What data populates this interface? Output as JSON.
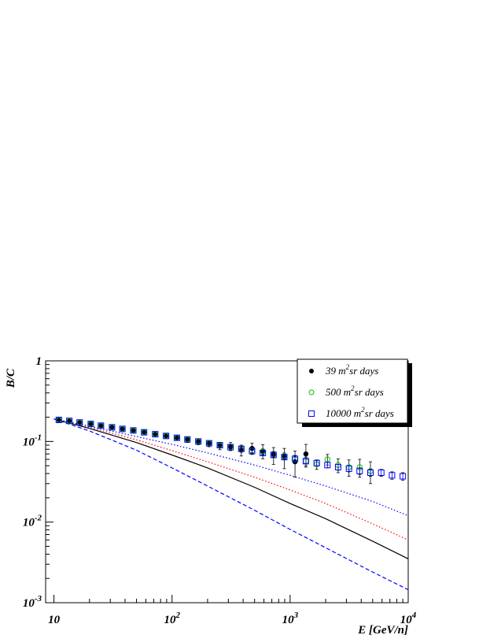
{
  "chart_data": {
    "type": "scatter",
    "xlabel": "E [GeV/n]",
    "ylabel": "B/C",
    "xscale": "log",
    "yscale": "log",
    "xlim": [
      8.5,
      10000
    ],
    "ylim": [
      0.001,
      1
    ],
    "xticks": [
      {
        "value": 10,
        "base": "10",
        "exp": ""
      },
      {
        "value": 100,
        "base": "10",
        "exp": "2"
      },
      {
        "value": 1000,
        "base": "10",
        "exp": "3"
      },
      {
        "value": 10000,
        "base": "10",
        "exp": "4"
      }
    ],
    "yticks": [
      {
        "value": 1,
        "base": "1",
        "exp": ""
      },
      {
        "value": 0.1,
        "base": "10",
        "exp": "-1"
      },
      {
        "value": 0.01,
        "base": "10",
        "exp": "-2"
      },
      {
        "value": 0.001,
        "base": "10",
        "exp": "-3"
      }
    ],
    "legend_position": "top-right",
    "series": [
      {
        "name": "39 m2sr days",
        "legend": {
          "pre": "39 m",
          "sup": "2",
          "post": "sr days"
        },
        "marker": "dot",
        "color": "#000000",
        "points": [
          {
            "x": 11,
            "y": 0.185,
            "err": 0.008
          },
          {
            "x": 13.5,
            "y": 0.18,
            "err": 0.008
          },
          {
            "x": 16.5,
            "y": 0.172,
            "err": 0.008
          },
          {
            "x": 20.5,
            "y": 0.165,
            "err": 0.008
          },
          {
            "x": 25,
            "y": 0.156,
            "err": 0.008
          },
          {
            "x": 31,
            "y": 0.149,
            "err": 0.008
          },
          {
            "x": 38,
            "y": 0.142,
            "err": 0.008
          },
          {
            "x": 47,
            "y": 0.136,
            "err": 0.008
          },
          {
            "x": 58,
            "y": 0.13,
            "err": 0.008
          },
          {
            "x": 72,
            "y": 0.123,
            "err": 0.008
          },
          {
            "x": 89,
            "y": 0.117,
            "err": 0.008
          },
          {
            "x": 110,
            "y": 0.111,
            "err": 0.008
          },
          {
            "x": 135,
            "y": 0.105,
            "err": 0.008
          },
          {
            "x": 167,
            "y": 0.099,
            "err": 0.008
          },
          {
            "x": 206,
            "y": 0.094,
            "err": 0.008
          },
          {
            "x": 254,
            "y": 0.088,
            "err": 0.009
          },
          {
            "x": 313,
            "y": 0.087,
            "err": 0.01
          },
          {
            "x": 386,
            "y": 0.078,
            "err": 0.012
          },
          {
            "x": 476,
            "y": 0.082,
            "err": 0.013
          },
          {
            "x": 587,
            "y": 0.076,
            "err": 0.015
          },
          {
            "x": 724,
            "y": 0.068,
            "err": 0.016
          },
          {
            "x": 893,
            "y": 0.064,
            "err": 0.018
          },
          {
            "x": 1100,
            "y": 0.056,
            "err": 0.02
          },
          {
            "x": 1360,
            "y": 0.07,
            "err": 0.022
          }
        ]
      },
      {
        "name": "500 m2sr days",
        "legend": {
          "pre": "500 m",
          "sup": "2",
          "post": "sr days"
        },
        "marker": "circle",
        "color": "#00c800",
        "points": [
          {
            "x": 11,
            "y": 0.185,
            "err": 0.006
          },
          {
            "x": 13.5,
            "y": 0.18,
            "err": 0.006
          },
          {
            "x": 16.5,
            "y": 0.172,
            "err": 0.006
          },
          {
            "x": 20.5,
            "y": 0.165,
            "err": 0.006
          },
          {
            "x": 25,
            "y": 0.157,
            "err": 0.006
          },
          {
            "x": 31,
            "y": 0.15,
            "err": 0.006
          },
          {
            "x": 38,
            "y": 0.143,
            "err": 0.006
          },
          {
            "x": 47,
            "y": 0.137,
            "err": 0.006
          },
          {
            "x": 58,
            "y": 0.13,
            "err": 0.006
          },
          {
            "x": 72,
            "y": 0.123,
            "err": 0.006
          },
          {
            "x": 89,
            "y": 0.117,
            "err": 0.006
          },
          {
            "x": 110,
            "y": 0.111,
            "err": 0.006
          },
          {
            "x": 135,
            "y": 0.106,
            "err": 0.006
          },
          {
            "x": 167,
            "y": 0.1,
            "err": 0.006
          },
          {
            "x": 206,
            "y": 0.095,
            "err": 0.006
          },
          {
            "x": 254,
            "y": 0.09,
            "err": 0.006
          },
          {
            "x": 313,
            "y": 0.086,
            "err": 0.006
          },
          {
            "x": 386,
            "y": 0.081,
            "err": 0.006
          },
          {
            "x": 476,
            "y": 0.077,
            "err": 0.006
          },
          {
            "x": 587,
            "y": 0.075,
            "err": 0.006
          },
          {
            "x": 724,
            "y": 0.069,
            "err": 0.006
          },
          {
            "x": 893,
            "y": 0.066,
            "err": 0.006
          },
          {
            "x": 1100,
            "y": 0.06,
            "err": 0.007
          },
          {
            "x": 1360,
            "y": 0.057,
            "err": 0.007
          },
          {
            "x": 1680,
            "y": 0.052,
            "err": 0.007
          },
          {
            "x": 2070,
            "y": 0.06,
            "err": 0.009
          },
          {
            "x": 2550,
            "y": 0.051,
            "err": 0.01
          },
          {
            "x": 3150,
            "y": 0.048,
            "err": 0.011
          },
          {
            "x": 3880,
            "y": 0.048,
            "err": 0.012
          },
          {
            "x": 4790,
            "y": 0.043,
            "err": 0.013
          }
        ]
      },
      {
        "name": "10000 m2sr days",
        "legend": {
          "pre": "10000 m",
          "sup": "2",
          "post": "sr days"
        },
        "marker": "square",
        "color": "#0000ff",
        "points": [
          {
            "x": 11,
            "y": 0.185,
            "err": 0.004
          },
          {
            "x": 13.5,
            "y": 0.18,
            "err": 0.004
          },
          {
            "x": 16.5,
            "y": 0.172,
            "err": 0.004
          },
          {
            "x": 20.5,
            "y": 0.165,
            "err": 0.004
          },
          {
            "x": 25,
            "y": 0.157,
            "err": 0.004
          },
          {
            "x": 31,
            "y": 0.15,
            "err": 0.004
          },
          {
            "x": 38,
            "y": 0.143,
            "err": 0.004
          },
          {
            "x": 47,
            "y": 0.137,
            "err": 0.004
          },
          {
            "x": 58,
            "y": 0.13,
            "err": 0.004
          },
          {
            "x": 72,
            "y": 0.123,
            "err": 0.004
          },
          {
            "x": 89,
            "y": 0.117,
            "err": 0.004
          },
          {
            "x": 110,
            "y": 0.111,
            "err": 0.004
          },
          {
            "x": 135,
            "y": 0.106,
            "err": 0.004
          },
          {
            "x": 167,
            "y": 0.1,
            "err": 0.004
          },
          {
            "x": 206,
            "y": 0.095,
            "err": 0.004
          },
          {
            "x": 254,
            "y": 0.09,
            "err": 0.004
          },
          {
            "x": 313,
            "y": 0.085,
            "err": 0.004
          },
          {
            "x": 386,
            "y": 0.081,
            "err": 0.004
          },
          {
            "x": 476,
            "y": 0.076,
            "err": 0.004
          },
          {
            "x": 587,
            "y": 0.072,
            "err": 0.004
          },
          {
            "x": 724,
            "y": 0.068,
            "err": 0.004
          },
          {
            "x": 893,
            "y": 0.064,
            "err": 0.004
          },
          {
            "x": 1100,
            "y": 0.061,
            "err": 0.004
          },
          {
            "x": 1360,
            "y": 0.057,
            "err": 0.004
          },
          {
            "x": 1680,
            "y": 0.054,
            "err": 0.004
          },
          {
            "x": 2070,
            "y": 0.051,
            "err": 0.004
          },
          {
            "x": 2550,
            "y": 0.048,
            "err": 0.004
          },
          {
            "x": 3150,
            "y": 0.046,
            "err": 0.004
          },
          {
            "x": 3880,
            "y": 0.043,
            "err": 0.004
          },
          {
            "x": 4790,
            "y": 0.041,
            "err": 0.004
          },
          {
            "x": 5910,
            "y": 0.041,
            "err": 0.004
          },
          {
            "x": 7290,
            "y": 0.038,
            "err": 0.004
          },
          {
            "x": 9000,
            "y": 0.037,
            "err": 0.004
          }
        ]
      }
    ],
    "curves": [
      {
        "style": "dotted",
        "color": "#0000ff",
        "x": [
          10,
          20,
          50,
          100,
          200,
          500,
          1000,
          2000,
          5000,
          10000
        ],
        "y": [
          0.19,
          0.155,
          0.115,
          0.092,
          0.072,
          0.051,
          0.038,
          0.028,
          0.018,
          0.012
        ]
      },
      {
        "style": "dotted",
        "color": "#ff0000",
        "x": [
          10,
          20,
          50,
          100,
          200,
          500,
          1000,
          2000,
          5000,
          10000
        ],
        "y": [
          0.19,
          0.15,
          0.105,
          0.077,
          0.056,
          0.036,
          0.025,
          0.017,
          0.0095,
          0.006
        ]
      },
      {
        "style": "solid",
        "color": "#000000",
        "x": [
          10,
          20,
          50,
          100,
          200,
          500,
          1000,
          2000,
          5000,
          10000
        ],
        "y": [
          0.19,
          0.145,
          0.097,
          0.068,
          0.047,
          0.027,
          0.017,
          0.011,
          0.0058,
          0.0035
        ]
      },
      {
        "style": "dashed",
        "color": "#0000ff",
        "x": [
          10,
          20,
          50,
          100,
          200,
          500,
          1000,
          2000,
          5000,
          10000
        ],
        "y": [
          0.19,
          0.135,
          0.078,
          0.047,
          0.028,
          0.014,
          0.0081,
          0.0048,
          0.0024,
          0.00145
        ]
      }
    ]
  }
}
